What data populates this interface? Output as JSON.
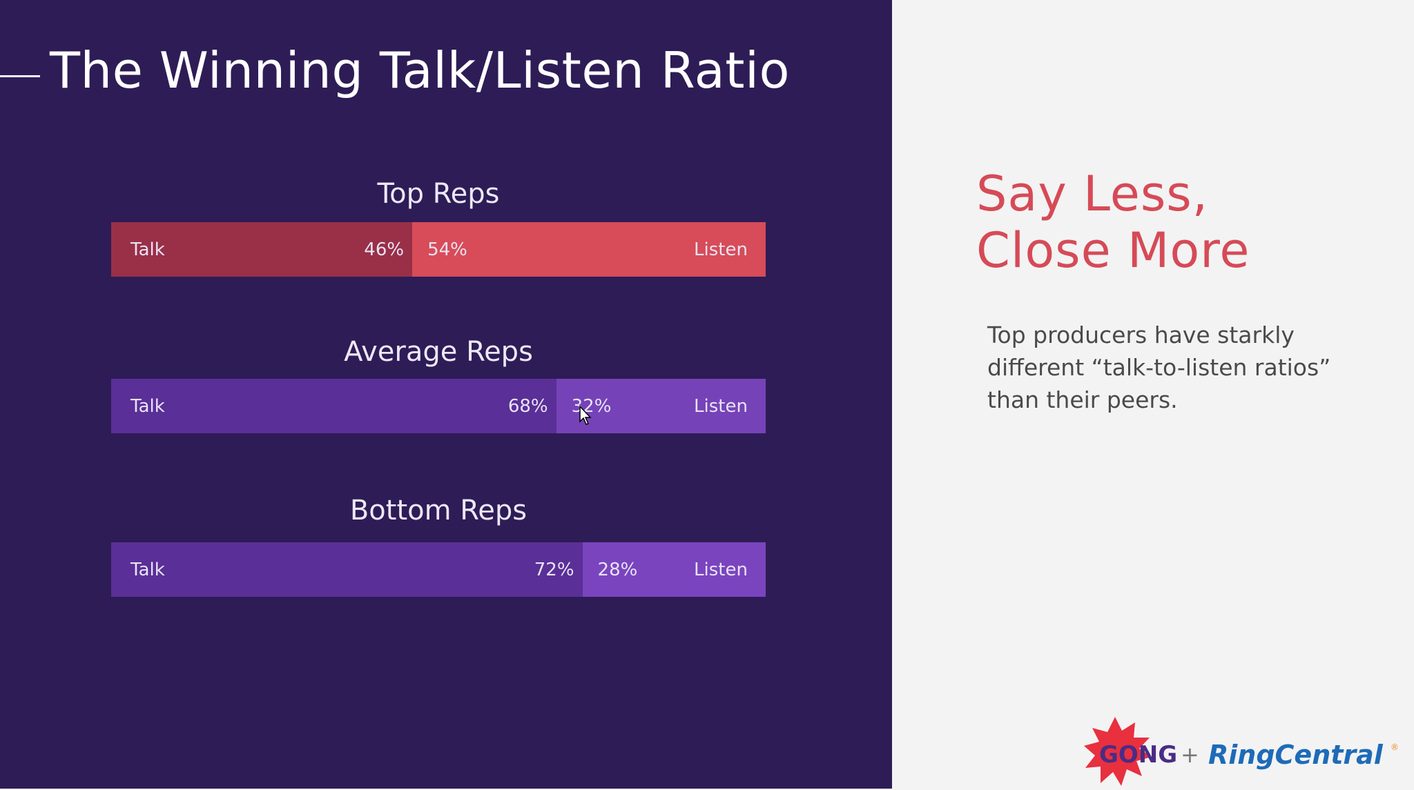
{
  "slide": {
    "title": "The Winning Talk/Listen Ratio",
    "headline": [
      "Say Less,",
      "Close More"
    ],
    "description": "Top producers have starkly different “talk-to-listen ratios” than their peers.",
    "logos": {
      "gong": "GONG",
      "plus": "+",
      "ringcentral": "RingCentral",
      "registered": "®"
    }
  },
  "chart_data": {
    "type": "bar",
    "orientation": "horizontal",
    "stacked": true,
    "categories": [
      "Top Reps",
      "Average Reps",
      "Bottom Reps"
    ],
    "series": [
      {
        "name": "Talk",
        "values": [
          46,
          68,
          72
        ]
      },
      {
        "name": "Listen",
        "values": [
          54,
          32,
          28
        ]
      }
    ],
    "unit": "%",
    "colors": {
      "top": {
        "talk": "#9a2f48",
        "listen": "#d74c58"
      },
      "average": {
        "talk": "#5a2f97",
        "listen": "#7543b7"
      },
      "bottom": {
        "talk": "#5a2f97",
        "listen": "#7a44bf"
      }
    }
  }
}
